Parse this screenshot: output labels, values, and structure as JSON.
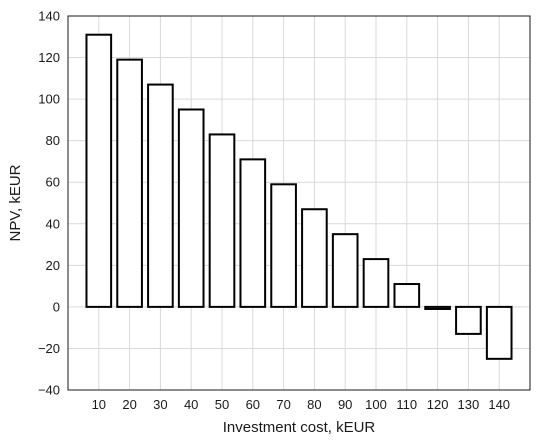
{
  "chart_data": {
    "type": "bar",
    "xlabel": "Investment cost, kEUR",
    "ylabel": "NPV, kEUR",
    "categories": [
      "10",
      "20",
      "30",
      "40",
      "50",
      "60",
      "70",
      "80",
      "90",
      "100",
      "110",
      "120",
      "130",
      "140"
    ],
    "values": [
      131,
      119,
      107,
      95,
      83,
      71,
      59,
      47,
      35,
      23,
      11,
      -1,
      -13,
      -25
    ],
    "ylim": [
      -40,
      140
    ],
    "yticks": [
      "−40",
      "−20",
      "0",
      "20",
      "40",
      "60",
      "80",
      "100",
      "120",
      "140"
    ],
    "grid": true,
    "colors": {
      "bar_fill": "#ffffff",
      "bar_edge": "#000000",
      "grid": "#d9d9d9"
    }
  }
}
